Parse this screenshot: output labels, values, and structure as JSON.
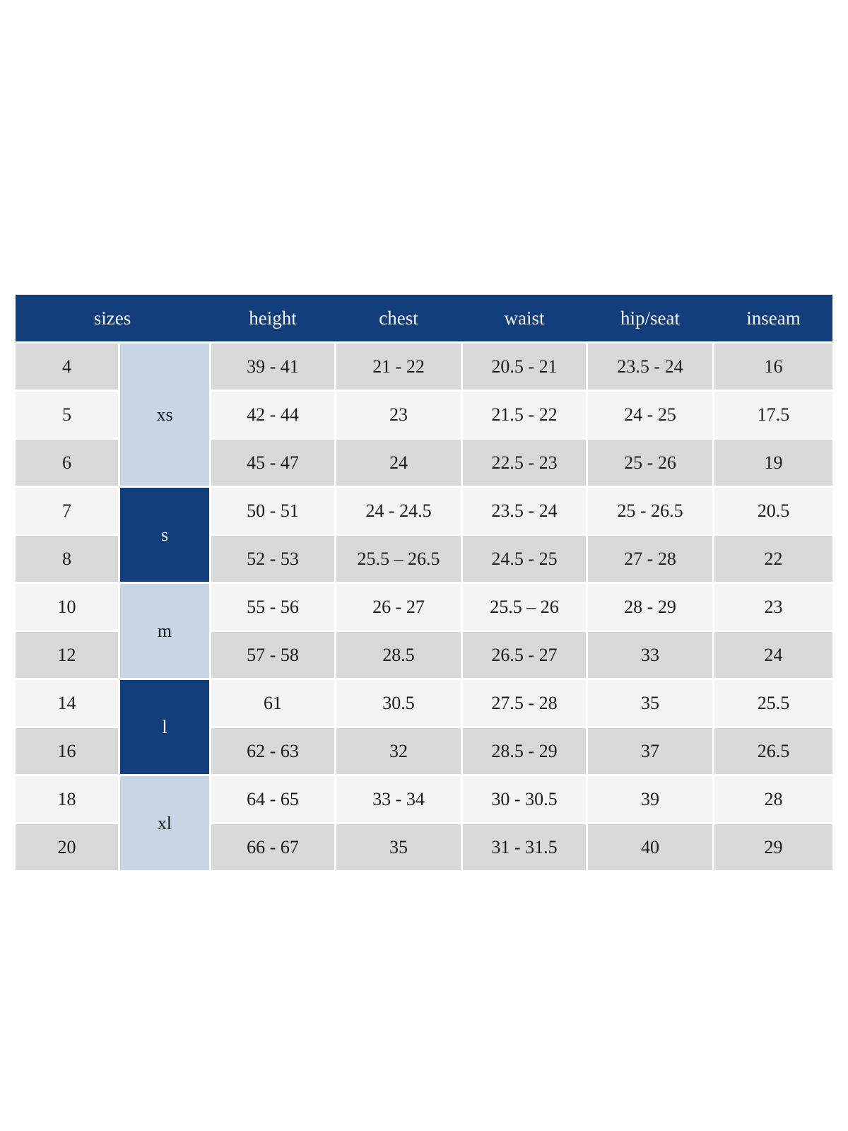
{
  "colors": {
    "header_bg": "#123e7c",
    "group_light_bg": "#c8d5e5",
    "group_dark_bg": "#123e7c",
    "row_gray": "#d8d8d8",
    "row_light": "#f4f4f4",
    "header_text": "#f4f4f4",
    "body_text": "#1c1c1c",
    "gap_color": "#ffffff"
  },
  "table": {
    "columns": {
      "sizes": "sizes",
      "height": "height",
      "chest": "chest",
      "waist": "waist",
      "hip_seat": "hip/seat",
      "inseam": "inseam"
    },
    "groups": [
      {
        "label": "xs",
        "row_span": 3,
        "style": "light"
      },
      {
        "label": "s",
        "row_span": 2,
        "style": "dark"
      },
      {
        "label": "m",
        "row_span": 2,
        "style": "light"
      },
      {
        "label": "l",
        "row_span": 2,
        "style": "dark"
      },
      {
        "label": "xl",
        "row_span": 2,
        "style": "light"
      }
    ],
    "field_order": [
      "height",
      "chest",
      "waist",
      "hip_seat",
      "inseam"
    ],
    "rows": [
      {
        "size": "4",
        "height": "39 - 41",
        "chest": "21 - 22",
        "waist": "20.5 - 21",
        "hip_seat": "23.5 - 24",
        "inseam": "16",
        "shade": "gray"
      },
      {
        "size": "5",
        "height": "42 - 44",
        "chest": "23",
        "waist": "21.5 - 22",
        "hip_seat": "24 - 25",
        "inseam": "17.5",
        "shade": "light"
      },
      {
        "size": "6",
        "height": "45 - 47",
        "chest": "24",
        "waist": "22.5 - 23",
        "hip_seat": "25 - 26",
        "inseam": "19",
        "shade": "gray"
      },
      {
        "size": "7",
        "height": "50 - 51",
        "chest": "24 - 24.5",
        "waist": "23.5 - 24",
        "hip_seat": "25 - 26.5",
        "inseam": "20.5",
        "shade": "light"
      },
      {
        "size": "8",
        "height": "52 - 53",
        "chest": "25.5 – 26.5",
        "waist": "24.5 - 25",
        "hip_seat": "27 - 28",
        "inseam": "22",
        "shade": "gray"
      },
      {
        "size": "10",
        "height": "55 - 56",
        "chest": "26 - 27",
        "waist": "25.5 – 26",
        "hip_seat": "28 - 29",
        "inseam": "23",
        "shade": "light"
      },
      {
        "size": "12",
        "height": "57 - 58",
        "chest": "28.5",
        "waist": "26.5 - 27",
        "hip_seat": "33",
        "inseam": "24",
        "shade": "gray"
      },
      {
        "size": "14",
        "height": "61",
        "chest": "30.5",
        "waist": "27.5 - 28",
        "hip_seat": "35",
        "inseam": "25.5",
        "shade": "light"
      },
      {
        "size": "16",
        "height": "62 - 63",
        "chest": "32",
        "waist": "28.5 - 29",
        "hip_seat": "37",
        "inseam": "26.5",
        "shade": "gray"
      },
      {
        "size": "18",
        "height": "64 - 65",
        "chest": "33 - 34",
        "waist": "30 - 30.5",
        "hip_seat": "39",
        "inseam": "28",
        "shade": "light"
      },
      {
        "size": "20",
        "height": "66 - 67",
        "chest": "35",
        "waist": "31 - 31.5",
        "hip_seat": "40",
        "inseam": "29",
        "shade": "gray"
      }
    ]
  }
}
